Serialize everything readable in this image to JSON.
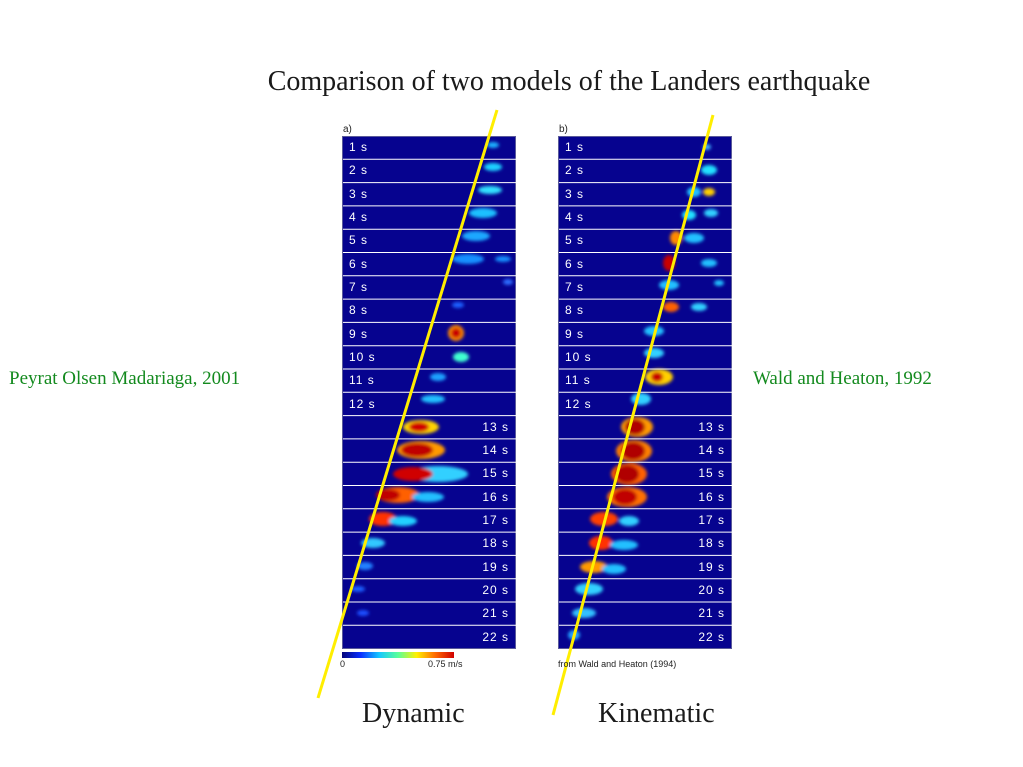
{
  "title": "Comparison of two models of the Landers earthquake",
  "left_label": "Peyrat Olsen Madariaga, 2001",
  "right_label": "Wald and Heaton, 1992",
  "panel_a": {
    "tag": "a)"
  },
  "panel_b": {
    "tag": "b)",
    "credit": "from Wald and Heaton (1994)"
  },
  "time_labels": [
    "1 s",
    "2 s",
    "3 s",
    "4 s",
    "5 s",
    "6 s",
    "7 s",
    "8 s",
    "9 s",
    "10 s",
    "11 s",
    "12 s",
    "13 s",
    "14 s",
    "15 s",
    "16 s",
    "17 s",
    "18 s",
    "19 s",
    "20 s",
    "21 s",
    "22 s"
  ],
  "colorbar": {
    "min_label": "0",
    "max_label": "0.75 m/s"
  },
  "captions": {
    "dynamic": "Dynamic",
    "kinematic": "Kinematic"
  },
  "colors": {
    "panel_bg": "#06038f",
    "rupture_line": "#ffee00",
    "label_green": "#138a1e"
  }
}
